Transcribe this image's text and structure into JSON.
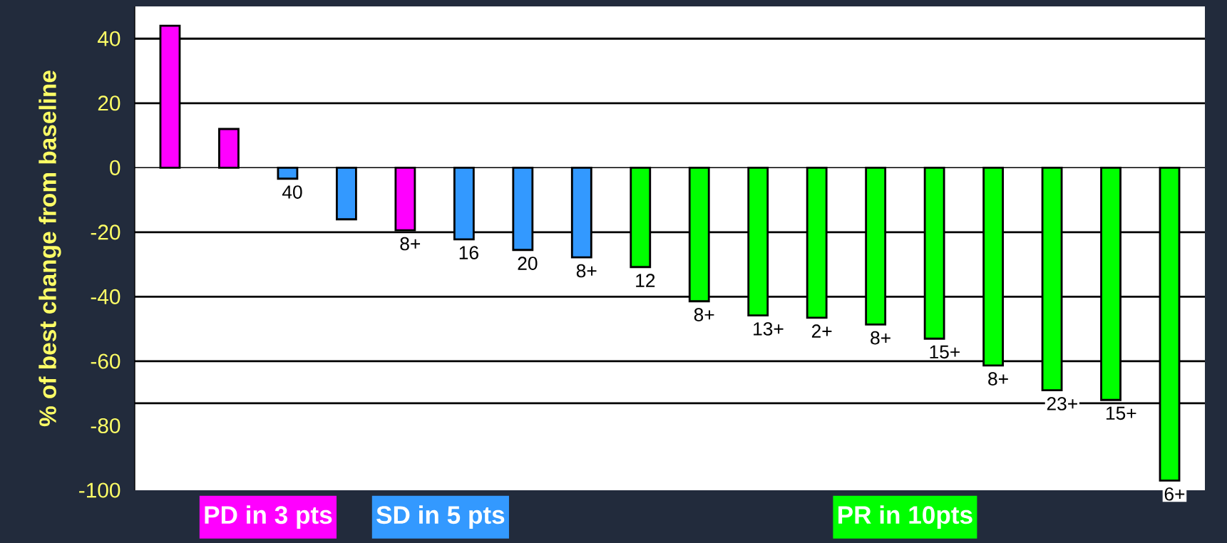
{
  "chart_data": {
    "type": "bar",
    "ylabel": "% of best change from baseline",
    "categories": [
      null,
      null,
      null,
      null,
      null,
      null,
      null,
      null,
      null,
      null,
      null,
      null,
      null,
      null,
      null,
      null,
      null,
      null
    ],
    "series": [
      {
        "name": "PD in 3 pts",
        "color": "#ff00ff",
        "values": [
          44,
          12,
          null,
          null,
          -19.4,
          null,
          null,
          null,
          null,
          null,
          null,
          null,
          null,
          null,
          null,
          null,
          null,
          null
        ]
      },
      {
        "name": "SD in 5 pts",
        "color": "#3399ff",
        "values": [
          null,
          null,
          -3.4,
          -16,
          null,
          -22.2,
          -25.5,
          -27.8,
          null,
          null,
          null,
          null,
          null,
          null,
          null,
          null,
          null,
          null
        ]
      },
      {
        "name": "PR in 10pts",
        "color": "#00ff00",
        "values": [
          null,
          null,
          null,
          null,
          null,
          null,
          null,
          null,
          -30.8,
          -41.4,
          -45.8,
          -46.5,
          -48.6,
          -53,
          -61.3,
          -69,
          -72,
          -97
        ]
      }
    ],
    "value_labels": [
      null,
      null,
      "40",
      null,
      "8+",
      "16",
      "20",
      "8+",
      "12",
      "8+",
      "13+",
      "2+",
      "8+",
      "15+",
      "8+",
      "23+",
      "15+",
      "6+"
    ],
    "ylim": [
      -100,
      50
    ],
    "yticks": [
      40,
      20,
      0,
      -20,
      -40,
      -60,
      -80,
      -100
    ],
    "ref_lines": [
      {
        "axis": "y",
        "value": 40
      },
      {
        "axis": "y",
        "value": 20
      },
      {
        "axis": "y",
        "value": -20
      },
      {
        "axis": "y",
        "value": -40
      },
      {
        "axis": "y",
        "value": -60
      },
      {
        "axis": "y",
        "value": -73
      }
    ],
    "legend": "bottom"
  }
}
